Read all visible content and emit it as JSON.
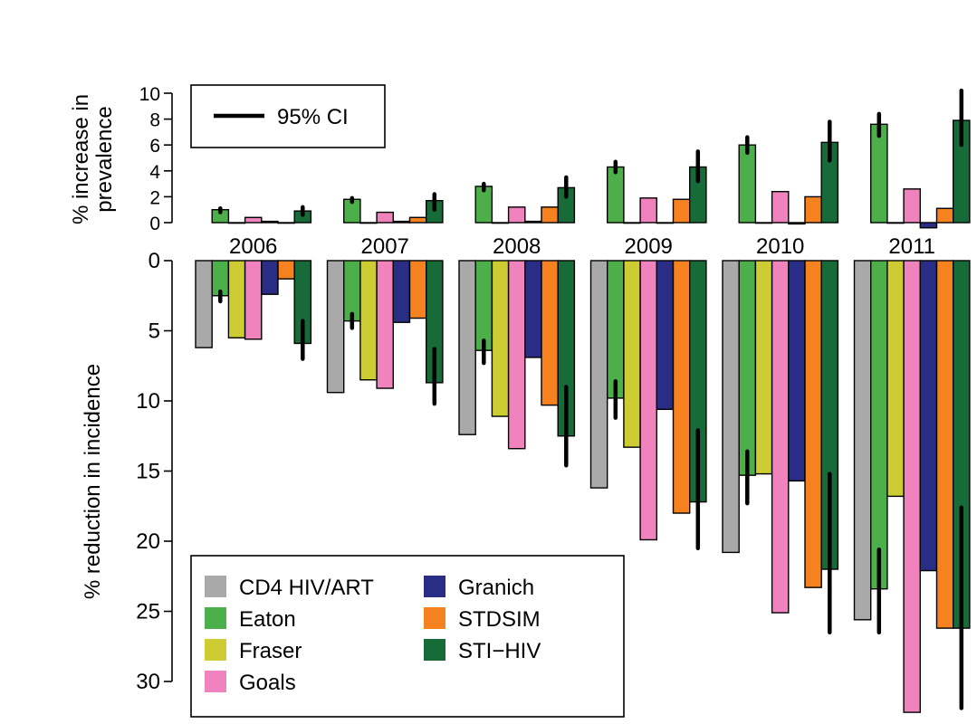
{
  "chart_data": [
    {
      "type": "bar",
      "panel": "prevalence",
      "ylabel": [
        "% increase in",
        "prevalence"
      ],
      "ylim": [
        0,
        10
      ],
      "yticks": [
        0,
        2,
        4,
        6,
        8,
        10
      ],
      "categories": [
        "2006",
        "2007",
        "2008",
        "2009",
        "2010",
        "2011"
      ],
      "legend": {
        "position": "top-left",
        "entries": [
          {
            "label": "95% CI",
            "symbol": "line"
          }
        ]
      },
      "series": [
        {
          "name": "Eaton",
          "color": "#4daf4a",
          "values": [
            1.0,
            1.8,
            2.8,
            4.3,
            6.0,
            7.6
          ],
          "ci": [
            [
              0.8,
              1.1
            ],
            [
              1.6,
              1.9
            ],
            [
              2.5,
              3.0
            ],
            [
              3.9,
              4.7
            ],
            [
              5.4,
              6.6
            ],
            [
              6.7,
              8.4
            ]
          ]
        },
        {
          "name": "Fraser",
          "color": "#cdcc33",
          "values": [
            0.0,
            0.0,
            0.0,
            0.0,
            0.0,
            0.0
          ]
        },
        {
          "name": "Goals",
          "color": "#f083bd",
          "values": [
            0.4,
            0.8,
            1.2,
            1.9,
            2.4,
            2.6
          ]
        },
        {
          "name": "Granich",
          "color": "#2a2d85",
          "values": [
            0.1,
            0.1,
            0.1,
            0.0,
            -0.1,
            -0.4
          ]
        },
        {
          "name": "STDSIM",
          "color": "#f5821f",
          "values": [
            0.0,
            0.4,
            1.2,
            1.8,
            2.0,
            1.1
          ]
        },
        {
          "name": "STI−HIV",
          "color": "#176b38",
          "values": [
            0.9,
            1.7,
            2.7,
            4.3,
            6.2,
            7.9
          ],
          "ci": [
            [
              0.6,
              1.2
            ],
            [
              1.0,
              2.2
            ],
            [
              2.0,
              3.5
            ],
            [
              3.2,
              5.5
            ],
            [
              4.8,
              7.8
            ],
            [
              6.0,
              10.2
            ]
          ]
        }
      ]
    },
    {
      "type": "bar",
      "panel": "incidence",
      "ylabel": "% reduction in incidence",
      "ylim": [
        0,
        32
      ],
      "yticks": [
        0,
        5,
        10,
        15,
        20,
        25,
        30
      ],
      "categories": [
        "2006",
        "2007",
        "2008",
        "2009",
        "2010",
        "2011"
      ],
      "legend": {
        "position": "bottom-left",
        "columns": 2
      },
      "series": [
        {
          "name": "CD4 HIV/ART",
          "color": "#a9a9a9",
          "values": [
            6.2,
            9.4,
            12.4,
            16.2,
            20.8,
            25.6
          ]
        },
        {
          "name": "Eaton",
          "color": "#4daf4a",
          "values": [
            2.5,
            4.3,
            6.4,
            9.8,
            15.3,
            23.4
          ],
          "ci": [
            [
              2.2,
              2.9
            ],
            [
              3.8,
              4.8
            ],
            [
              5.7,
              7.3
            ],
            [
              8.6,
              11.2
            ],
            [
              13.6,
              17.3
            ],
            [
              20.6,
              26.5
            ]
          ]
        },
        {
          "name": "Fraser",
          "color": "#cdcc33",
          "values": [
            5.5,
            8.5,
            11.1,
            13.3,
            15.2,
            16.8
          ]
        },
        {
          "name": "Goals",
          "color": "#f083bd",
          "values": [
            5.6,
            9.1,
            13.4,
            19.9,
            25.1,
            32.2
          ]
        },
        {
          "name": "Granich",
          "color": "#2a2d85",
          "values": [
            2.4,
            4.4,
            6.9,
            10.6,
            15.7,
            22.1
          ]
        },
        {
          "name": "STDSIM",
          "color": "#f5821f",
          "values": [
            1.3,
            4.1,
            10.3,
            18.0,
            23.3,
            26.2
          ]
        },
        {
          "name": "STI−HIV",
          "color": "#176b38",
          "values": [
            5.9,
            8.7,
            12.5,
            17.2,
            22.0,
            26.2
          ],
          "ci": [
            [
              4.3,
              7.0
            ],
            [
              6.3,
              10.2
            ],
            [
              9.0,
              14.6
            ],
            [
              12.1,
              20.5
            ],
            [
              15.2,
              26.5
            ],
            [
              17.6,
              31.9
            ]
          ]
        }
      ]
    }
  ]
}
